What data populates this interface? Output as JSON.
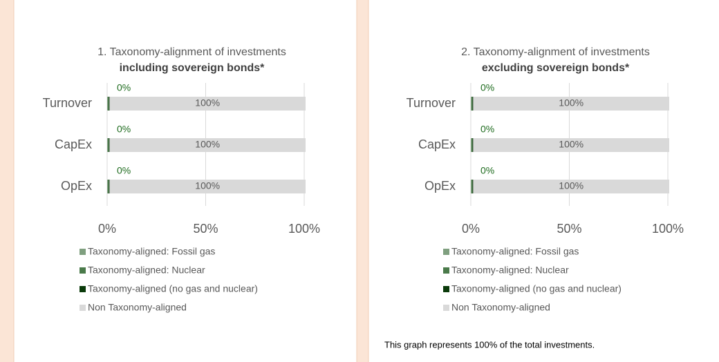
{
  "chart_data": [
    {
      "type": "stacked-bar-horizontal",
      "title": "1. Taxonomy-alignment of investments",
      "subtitle": "including sovereign bonds*",
      "categories": [
        "Turnover",
        "CapEx",
        "OpEx"
      ],
      "series": [
        {
          "name": "Taxonomy-aligned: Fossil gas",
          "color": "#7f9f7f",
          "values": [
            0.4,
            0.4,
            0.4
          ]
        },
        {
          "name": "Taxonomy-aligned: Nuclear",
          "color": "#4a7a4a",
          "values": [
            0.4,
            0.4,
            0.4
          ]
        },
        {
          "name": "Taxonomy-aligned (no gas and nuclear)",
          "color": "#0a3a0a",
          "values": [
            0.4,
            0.4,
            0.4
          ],
          "value_labels": [
            "0%",
            "0%",
            "0%"
          ]
        },
        {
          "name": "Non Taxonomy-aligned",
          "color": "#d9d9d9",
          "values": [
            99.5,
            99.5,
            99.5
          ],
          "value_labels": [
            "100%",
            "100%",
            "100%"
          ]
        }
      ],
      "xlim": [
        0,
        100
      ],
      "xticks": [
        {
          "value": 0,
          "label": "0%"
        },
        {
          "value": 50,
          "label": "50%"
        },
        {
          "value": 100,
          "label": "100%"
        }
      ],
      "grid": true
    },
    {
      "type": "stacked-bar-horizontal",
      "title": "2. Taxonomy-alignment of investments",
      "subtitle": "excluding sovereign bonds*",
      "categories": [
        "Turnover",
        "CapEx",
        "OpEx"
      ],
      "series": [
        {
          "name": "Taxonomy-aligned: Fossil gas",
          "color": "#7f9f7f",
          "values": [
            0.4,
            0.4,
            0.4
          ]
        },
        {
          "name": "Taxonomy-aligned: Nuclear",
          "color": "#4a7a4a",
          "values": [
            0.4,
            0.4,
            0.4
          ]
        },
        {
          "name": "Taxonomy-aligned (no gas and nuclear)",
          "color": "#0a3a0a",
          "values": [
            0.4,
            0.4,
            0.4
          ],
          "value_labels": [
            "0%",
            "0%",
            "0%"
          ]
        },
        {
          "name": "Non Taxonomy-aligned",
          "color": "#d9d9d9",
          "values": [
            99.5,
            99.5,
            99.5
          ],
          "value_labels": [
            "100%",
            "100%",
            "100%"
          ]
        }
      ],
      "xlim": [
        0,
        100
      ],
      "xticks": [
        {
          "value": 0,
          "label": "0%"
        },
        {
          "value": 50,
          "label": "50%"
        },
        {
          "value": 100,
          "label": "100%"
        }
      ],
      "grid": true,
      "note": "This graph represents 100% of the total investments."
    }
  ]
}
